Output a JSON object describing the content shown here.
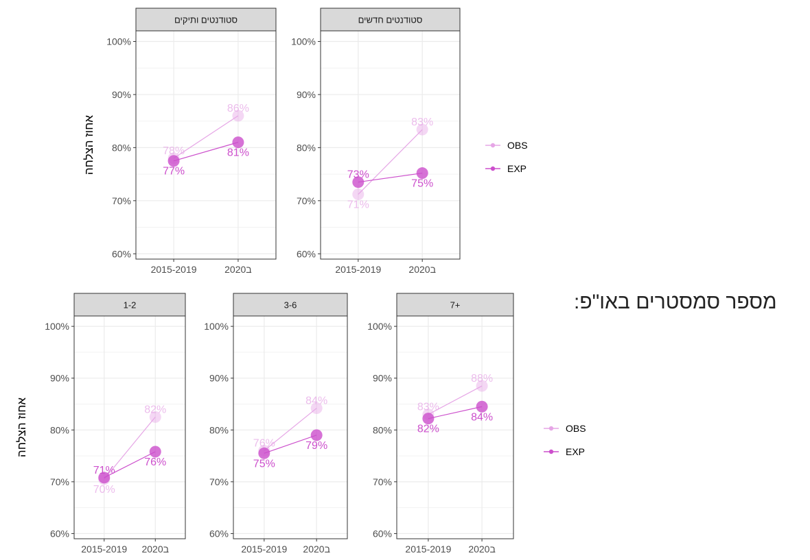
{
  "side_title": "מספר סמסטרים באו\"פ:",
  "colors": {
    "OBS": "#e6a6e6",
    "EXP": "#cc4fcc"
  },
  "chart_data": [
    {
      "type": "line",
      "facet_row": "top",
      "ylabel": "אחוז הצלחה",
      "ylim": [
        0.59,
        1.02
      ],
      "yticks": [
        0.6,
        0.7,
        0.8,
        0.9,
        1.0
      ],
      "ytick_labels": [
        "60%",
        "70%",
        "80%",
        "90%",
        "100%"
      ],
      "categories": [
        "2015-2019",
        "2020ב"
      ],
      "legend": [
        "OBS",
        "EXP"
      ],
      "legend_position": "right",
      "grid": true,
      "panels": [
        {
          "strip": "סטודנטים ותיקים",
          "series": [
            {
              "name": "OBS",
              "values": [
                0.78,
                0.86
              ],
              "labels": [
                "78%",
                "86%"
              ]
            },
            {
              "name": "EXP",
              "values": [
                0.775,
                0.81
              ],
              "labels": [
                "77%",
                "81%"
              ]
            }
          ]
        },
        {
          "strip": "סטודנטים חדשים",
          "series": [
            {
              "name": "OBS",
              "values": [
                0.712,
                0.834
              ],
              "labels": [
                "71%",
                "83%"
              ]
            },
            {
              "name": "EXP",
              "values": [
                0.735,
                0.752
              ],
              "labels": [
                "73%",
                "75%"
              ]
            }
          ]
        }
      ]
    },
    {
      "type": "line",
      "facet_row": "bottom",
      "ylabel": "אחוז הצלחה",
      "ylim": [
        0.59,
        1.02
      ],
      "yticks": [
        0.6,
        0.7,
        0.8,
        0.9,
        1.0
      ],
      "ytick_labels": [
        "60%",
        "70%",
        "80%",
        "90%",
        "100%"
      ],
      "categories": [
        "2015-2019",
        "2020ב"
      ],
      "legend": [
        "OBS",
        "EXP"
      ],
      "legend_position": "right",
      "grid": true,
      "panels": [
        {
          "strip": "1-2",
          "series": [
            {
              "name": "OBS",
              "values": [
                0.705,
                0.825
              ],
              "labels": [
                "70%",
                "82%"
              ]
            },
            {
              "name": "EXP",
              "values": [
                0.708,
                0.758
              ],
              "labels": [
                "71%",
                "76%"
              ]
            }
          ]
        },
        {
          "strip": "3-6",
          "series": [
            {
              "name": "OBS",
              "values": [
                0.76,
                0.842
              ],
              "labels": [
                "76%",
                "84%"
              ]
            },
            {
              "name": "EXP",
              "values": [
                0.755,
                0.79
              ],
              "labels": [
                "75%",
                "79%"
              ]
            }
          ]
        },
        {
          "strip": "7+",
          "series": [
            {
              "name": "OBS",
              "values": [
                0.83,
                0.885
              ],
              "labels": [
                "83%",
                "88%"
              ]
            },
            {
              "name": "EXP",
              "values": [
                0.822,
                0.845
              ],
              "labels": [
                "82%",
                "84%"
              ]
            }
          ]
        }
      ]
    }
  ]
}
